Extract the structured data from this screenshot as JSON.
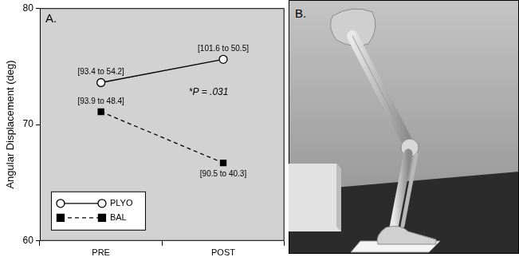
{
  "chart_data": {
    "type": "line",
    "panel_label": "A.",
    "categories": [
      "PRE",
      "POST"
    ],
    "series": [
      {
        "name": "PLYO",
        "color": "#000000",
        "marker": "circle_open",
        "line_style": "solid",
        "values": [
          73.6,
          75.6
        ],
        "range_labels": [
          "[93.4 to 54.2]",
          "[101.6 to 50.5]"
        ]
      },
      {
        "name": "BAL",
        "color": "#000000",
        "marker": "square",
        "line_style": "dashed",
        "values": [
          71.1,
          66.7
        ],
        "range_labels": [
          "[93.9 to 48.4]",
          "[90.5 to 40.3]"
        ]
      }
    ],
    "y_label": "Angular Displacement (deg)",
    "ylim": [
      60,
      80
    ],
    "yticks": [
      60,
      70,
      80
    ],
    "grid": false,
    "legend": "lower left",
    "annotations": [
      "*P = .031"
    ]
  },
  "panel_b": {
    "label": "B."
  }
}
